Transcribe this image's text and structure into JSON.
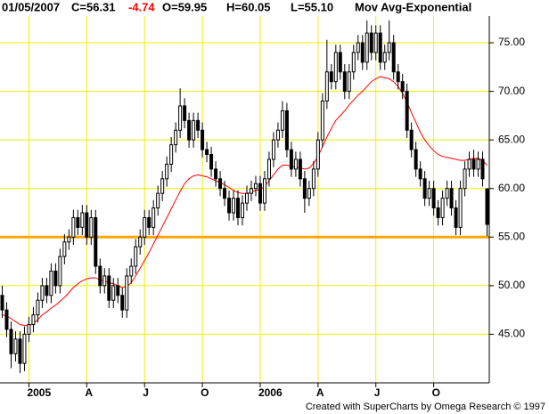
{
  "chart_data": {
    "type": "candlestick",
    "header": [
      {
        "text": "01/05/2007",
        "color": "#000000"
      },
      {
        "text": "C=56.31",
        "color": "#000000"
      },
      {
        "text": "-4.74",
        "color": "#ff0000"
      },
      {
        "text": "O=59.95",
        "color": "#000000"
      },
      {
        "text": "H=60.05",
        "color": "#000000"
      },
      {
        "text": "L=55.10",
        "color": "#000000"
      }
    ],
    "footer": "Created with SuperCharts by Omega Research © 1997",
    "categories": [
      null,
      null,
      null,
      null,
      null,
      null,
      "2005",
      null,
      null,
      null,
      null,
      null,
      null,
      null,
      null,
      null,
      null,
      null,
      null,
      "A",
      null,
      null,
      null,
      null,
      null,
      null,
      null,
      null,
      null,
      null,
      null,
      null,
      "J",
      null,
      null,
      null,
      null,
      null,
      null,
      null,
      null,
      null,
      null,
      null,
      null,
      "O",
      null,
      null,
      null,
      null,
      null,
      null,
      null,
      null,
      null,
      null,
      null,
      null,
      "2006",
      null,
      null,
      null,
      null,
      null,
      null,
      null,
      null,
      null,
      null,
      null,
      null,
      "A",
      null,
      null,
      null,
      null,
      null,
      null,
      null,
      null,
      null,
      null,
      null,
      null,
      "J",
      null,
      null,
      null,
      null,
      null,
      null,
      null,
      null,
      null,
      null,
      null,
      null,
      "O",
      null,
      null,
      null,
      null,
      null,
      null,
      null,
      null,
      null,
      null,
      null,
      null
    ],
    "open": [
      49,
      47.5,
      45.5,
      43,
      44.5,
      42,
      45,
      46,
      47,
      48.5,
      50,
      49,
      51.5,
      50,
      53,
      54.5,
      55,
      57,
      56,
      57.5,
      55,
      57,
      52,
      50,
      51,
      48.5,
      50,
      49,
      47.5,
      51,
      52,
      54,
      55,
      57,
      56,
      58,
      59.5,
      61,
      62.5,
      64.5,
      66,
      68.5,
      67,
      65,
      67,
      66,
      64,
      63.5,
      62,
      61,
      60,
      59,
      57.5,
      59,
      57,
      58.5,
      59.5,
      60,
      60.5,
      58.5,
      61,
      63,
      65,
      66,
      68,
      64,
      62,
      63,
      61,
      59,
      60,
      62,
      65,
      69,
      72,
      71,
      74,
      72,
      70,
      72,
      74,
      75,
      73,
      76,
      74,
      76,
      73,
      74,
      75,
      72,
      71,
      70,
      66,
      64,
      62,
      61,
      59,
      60,
      58,
      57,
      59,
      60,
      58,
      56,
      60,
      62,
      63,
      62,
      63,
      59.95
    ],
    "high": [
      50,
      48.3,
      46.3,
      45.3,
      45.3,
      45.8,
      46.8,
      47.8,
      49.3,
      50.8,
      50.8,
      52.3,
      52.3,
      53.8,
      55.3,
      55.8,
      57.8,
      57.8,
      58.3,
      58.3,
      57.8,
      57.8,
      52.8,
      51.8,
      51.8,
      50.8,
      50.8,
      49.8,
      51.8,
      52.8,
      54.8,
      55.8,
      57.8,
      57.8,
      58.8,
      60.3,
      61.8,
      63.3,
      65.3,
      66.8,
      70.3,
      69.3,
      67.8,
      67.8,
      67.8,
      66.8,
      64.8,
      64.3,
      62.8,
      61.8,
      60.8,
      59.8,
      59.8,
      59.8,
      59.3,
      60.3,
      60.8,
      61.3,
      61.3,
      61.8,
      63.8,
      65.8,
      66.8,
      69,
      68.8,
      64.8,
      63.8,
      63.8,
      61.8,
      60.8,
      62.8,
      65.8,
      69.8,
      75.3,
      72.8,
      74.8,
      74.8,
      72.8,
      72.8,
      74.8,
      75.8,
      75.8,
      77.3,
      76.8,
      76.8,
      76.8,
      74.8,
      77.3,
      75.8,
      72.8,
      71.8,
      70.8,
      66.8,
      64.8,
      62.8,
      61.8,
      60.8,
      60.8,
      58.8,
      59.8,
      60.8,
      60.8,
      58.8,
      60.8,
      62.8,
      63.8,
      64,
      63.8,
      63.8,
      60.05
    ],
    "low": [
      46.7,
      44.7,
      41.5,
      42.2,
      41,
      41.2,
      44.2,
      45.2,
      46.2,
      47.7,
      48.2,
      48.2,
      49.2,
      49.2,
      52.2,
      53.7,
      54.2,
      55.2,
      55.2,
      54.2,
      54.2,
      51.2,
      49.2,
      49.2,
      47.7,
      47.7,
      48.2,
      46.7,
      46.7,
      50.2,
      51.2,
      53.2,
      54.2,
      55.2,
      55.2,
      57.2,
      58.7,
      60.2,
      61.7,
      63.7,
      65.2,
      66.2,
      64.2,
      64.2,
      65.2,
      63.2,
      62.7,
      61.2,
      60.2,
      59.2,
      58.2,
      56.7,
      56.7,
      56.2,
      56.2,
      57.7,
      58.7,
      59.2,
      57.7,
      57.7,
      60.2,
      62.2,
      64.2,
      65.2,
      63.2,
      61.2,
      61.2,
      60.2,
      57.5,
      58.2,
      59.2,
      61.2,
      64.2,
      68.2,
      70.2,
      70.2,
      71.2,
      69.2,
      69.2,
      71.2,
      73.2,
      72.2,
      72.2,
      73.2,
      73.2,
      72.2,
      72.2,
      73.2,
      71.2,
      70.2,
      69.2,
      65.2,
      63.2,
      61.2,
      60.2,
      58.2,
      58.2,
      57.2,
      56.2,
      56.2,
      58.2,
      57.2,
      55.2,
      55.2,
      59.2,
      61.2,
      61.2,
      61.2,
      60.2,
      55.1
    ],
    "close": [
      47.5,
      45.5,
      43,
      44.5,
      42,
      45,
      46,
      47,
      48.5,
      50,
      49,
      51.5,
      50,
      53,
      54.5,
      55,
      57,
      56,
      57.5,
      55,
      57,
      52,
      50,
      51,
      48.5,
      50,
      49,
      47.5,
      51,
      52,
      54,
      55,
      57,
      56,
      58,
      59.5,
      61,
      62.5,
      64.5,
      66,
      68.5,
      67,
      65,
      67,
      66,
      64,
      63.5,
      62,
      61,
      60,
      59,
      57.5,
      59,
      57,
      58.5,
      59.5,
      60,
      60.5,
      58.5,
      61,
      63,
      65,
      66,
      68,
      64,
      62,
      63,
      61,
      59,
      60,
      62,
      65,
      69,
      72,
      71,
      74,
      72,
      70,
      72,
      74,
      75,
      73,
      76,
      74,
      76,
      73,
      74,
      75,
      72,
      71,
      70,
      66,
      64,
      62,
      61,
      59,
      60,
      58,
      57,
      59,
      60,
      58,
      56,
      60,
      62,
      63,
      62,
      63,
      61,
      56.31
    ],
    "candle_color": "#000000",
    "moving_average": {
      "name": "Mov Avg-Exponential",
      "color": "#ff0000",
      "values": [
        47,
        46.9,
        46.6,
        46.3,
        46,
        45.9,
        45.9,
        46.1,
        46.5,
        47,
        47.3,
        47.7,
        48,
        48.4,
        48.8,
        49.3,
        49.8,
        50.2,
        50.5,
        50.7,
        50.8,
        50.8,
        50.6,
        50.5,
        50.3,
        50.2,
        50,
        49.8,
        49.9,
        50.3,
        51,
        51.8,
        52.6,
        53.4,
        54.3,
        55.2,
        56.1,
        57,
        57.9,
        58.8,
        59.7,
        60.5,
        61,
        61.3,
        61.4,
        61.3,
        61.2,
        61,
        60.8,
        60.6,
        60.4,
        60.1,
        59.8,
        59.6,
        59.5,
        59.5,
        59.6,
        59.8,
        59.9,
        60.2,
        60.8,
        61.4,
        62,
        62.4,
        62.4,
        62.3,
        62.2,
        62.1,
        62,
        62.1,
        62.6,
        63.3,
        64.3,
        65.3,
        66.2,
        67,
        67.5,
        68,
        68.6,
        69.1,
        69.6,
        70,
        70.5,
        71,
        71.3,
        71.5,
        71.4,
        71.3,
        71,
        70.5,
        69.8,
        68.9,
        67.8,
        66.8,
        65.8,
        65,
        64.4,
        63.9,
        63.5,
        63.3,
        63.2,
        63.1,
        63,
        62.9,
        62.9,
        63,
        63.1,
        63.1,
        62.9,
        62.4
      ]
    },
    "reference_line": {
      "value": 55,
      "color": "#ffa500"
    },
    "ylim": [
      40,
      77.75
    ],
    "yticks": [
      {
        "value": 45,
        "label": "45.00"
      },
      {
        "value": 50,
        "label": "50.00"
      },
      {
        "value": 55,
        "label": "55.00"
      },
      {
        "value": 60,
        "label": "60.00"
      },
      {
        "value": 65,
        "label": "65.00"
      },
      {
        "value": 70,
        "label": "70.00"
      },
      {
        "value": 75,
        "label": "75.00"
      }
    ],
    "grid": true,
    "grid_color": "#f0f000"
  }
}
